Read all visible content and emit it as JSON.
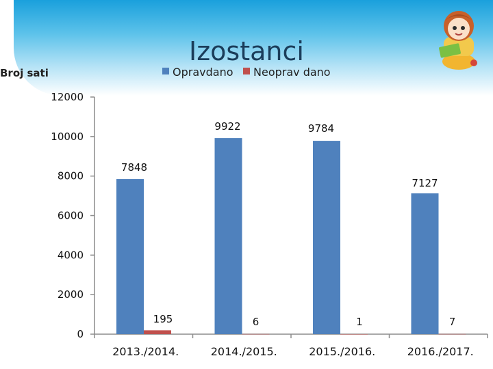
{
  "chart_data": {
    "type": "bar",
    "title": "Izostanci",
    "ylabel": "Broj sati",
    "xlabel": "",
    "categories": [
      "2013./2014.",
      "2014./2015.",
      "2015./2016.",
      "2016./2017."
    ],
    "series": [
      {
        "name": "Opravdano",
        "color": "#4f81bd",
        "values": [
          7848,
          9922,
          9784,
          7127
        ]
      },
      {
        "name": "Neoprav dano",
        "color": "#c0504d",
        "values": [
          195,
          6,
          1,
          7
        ]
      }
    ],
    "ylim": [
      0,
      12000
    ],
    "yticks": [
      "0",
      "2000",
      "4000",
      "6000",
      "8000",
      "10000",
      "12000"
    ],
    "grid": false,
    "legend_position": "top"
  }
}
